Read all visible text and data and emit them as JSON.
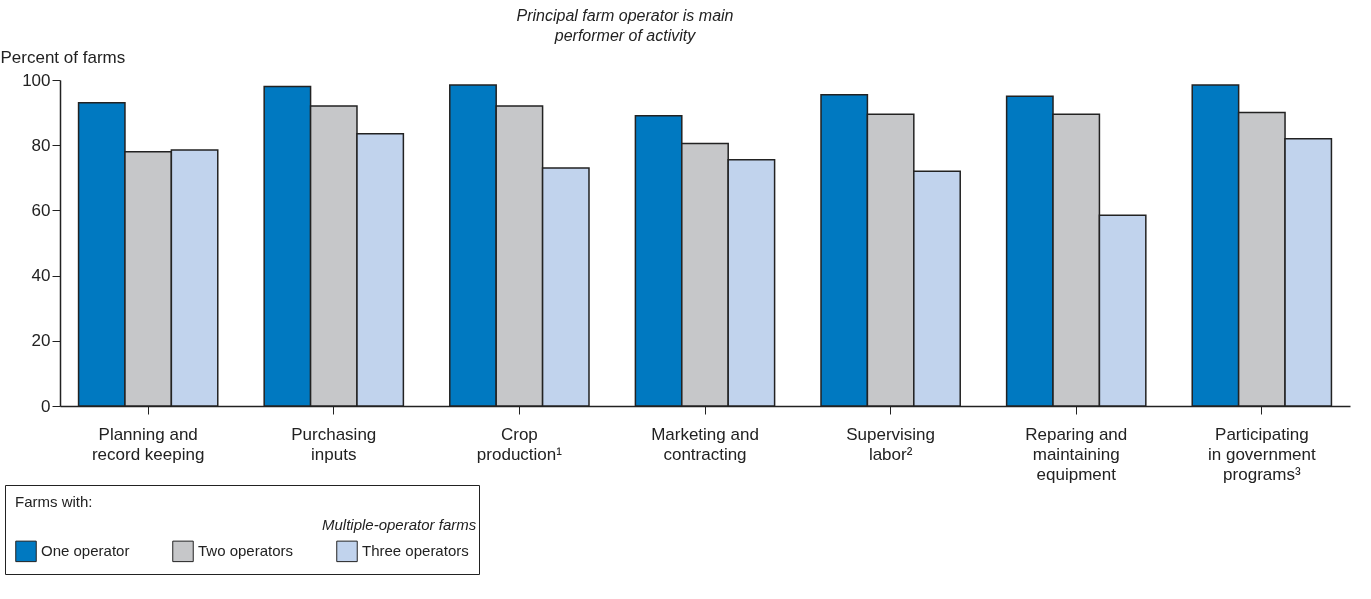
{
  "chart_data": {
    "type": "bar",
    "title": "Principal farm operator is main performer of activity",
    "ylabel": "Percent of farms",
    "legend_title": "Farms with:",
    "categories": [
      "Planning and record keeping",
      "Purchasing inputs",
      "Crop production¹",
      "Marketing and contracting",
      "Supervising labor²",
      "Reparing and maintaining equipment",
      "Participating in government programs³"
    ],
    "series": [
      {
        "name": "One operator",
        "color": "#0079c1",
        "values": [
          93,
          98,
          98.5,
          89,
          95.5,
          95,
          98.5
        ]
      },
      {
        "name": "Two operators",
        "color": "#c6c7c9",
        "values": [
          78,
          92,
          92,
          80.5,
          89.5,
          89.5,
          90
        ]
      },
      {
        "name": "Three operators",
        "color": "#c1d3ed",
        "values": [
          78.5,
          83.5,
          73,
          75.5,
          72,
          58.5,
          82
        ]
      }
    ],
    "ylim": [
      0,
      100
    ],
    "yticks": [
      0,
      20,
      40,
      60,
      80,
      100
    ],
    "grid": false,
    "legend": "bottom left",
    "annotations": [
      "Multiple-operator farms"
    ]
  }
}
